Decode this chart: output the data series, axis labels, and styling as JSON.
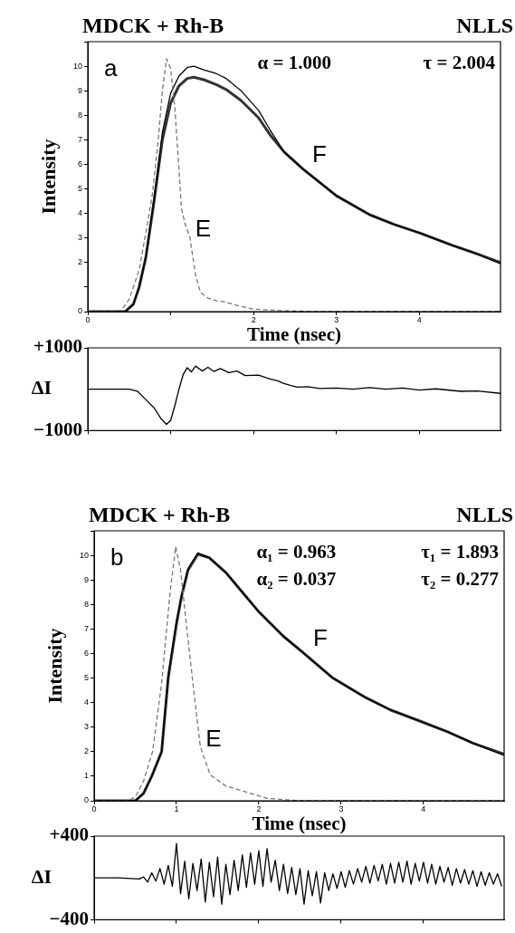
{
  "chart_data": [
    {
      "type": "line",
      "title": "MDCK + Rh-B",
      "xlabel": "Time (nsec)",
      "ylabel": "Intensity",
      "marker": "none",
      "annotations": [
        "NLLS",
        "a",
        "α = 1.000",
        "τ = 2.004"
      ],
      "xlim": [
        0,
        4.98
      ],
      "xticks": [
        0,
        {
          "value": 1,
          "label": null
        },
        2,
        3,
        4
      ],
      "ylim": [
        0,
        11
      ],
      "yticks": [
        0,
        {
          "value": 1,
          "label": null
        },
        2,
        3,
        4,
        5,
        6,
        7,
        8,
        9,
        10,
        {
          "value": 11,
          "label": null
        }
      ],
      "series": [
        {
          "name": "E",
          "color": "#777777",
          "line_style": "dashed",
          "x": [
            0,
            0.3,
            0.4,
            0.5,
            0.62,
            0.7,
            0.78,
            0.85,
            0.9,
            0.95,
            1.0,
            1.05,
            1.1,
            1.13,
            1.18,
            1.23,
            1.3,
            1.36,
            1.45,
            1.55,
            1.67,
            1.8,
            2.0,
            2.3,
            2.7,
            3.5,
            4.98
          ],
          "values": [
            0,
            0,
            0.05,
            0.5,
            1.7,
            3.2,
            4.8,
            7.0,
            9.0,
            10.3,
            9.9,
            8.3,
            5.8,
            4.2,
            3.5,
            3.06,
            1.5,
            0.78,
            0.55,
            0.45,
            0.38,
            0.25,
            0.1,
            0.05,
            0,
            0,
            0
          ]
        },
        {
          "name": "F",
          "color": "#000000",
          "x": [
            0,
            0.45,
            0.55,
            0.62,
            0.7,
            0.8,
            0.9,
            1.0,
            1.1,
            1.2,
            1.28,
            1.4,
            1.55,
            1.67,
            1.85,
            2.06,
            2.2,
            2.37,
            2.6,
            3.0,
            3.4,
            3.7,
            4.01,
            4.4,
            4.7,
            4.98
          ],
          "values": [
            0,
            0,
            0.3,
            1.0,
            2.2,
            4.6,
            7.3,
            8.9,
            9.6,
            9.95,
            10.0,
            9.85,
            9.7,
            9.5,
            9.0,
            8.2,
            7.4,
            6.5,
            5.8,
            4.72,
            3.95,
            3.55,
            3.2,
            2.7,
            2.35,
            1.95
          ]
        },
        {
          "color": "#333333",
          "x": [
            0,
            0.45,
            0.55,
            0.62,
            0.7,
            0.8,
            0.9,
            1.0,
            1.1,
            1.2,
            1.28,
            1.4,
            1.55,
            1.67,
            1.85,
            2.06,
            2.2,
            2.37,
            2.6,
            3.0,
            3.4,
            3.7,
            4.01,
            4.4,
            4.7,
            4.98
          ],
          "values": [
            0,
            0,
            0.3,
            1.0,
            2.2,
            4.5,
            7.0,
            8.5,
            9.2,
            9.5,
            9.55,
            9.45,
            9.25,
            9.05,
            8.6,
            7.9,
            7.2,
            6.5,
            5.8,
            4.72,
            3.95,
            3.55,
            3.2,
            2.7,
            2.35,
            2.0
          ]
        }
      ]
    },
    {
      "type": "line",
      "ylabel": "ΔI",
      "marker": "none",
      "tick_labels": "y",
      "xlim": [
        0,
        4.98
      ],
      "xticks": [
        {
          "value": 0,
          "label": null
        },
        {
          "value": 1,
          "label": null
        },
        {
          "value": 2,
          "label": null
        },
        {
          "value": 3,
          "label": null
        },
        {
          "value": 4,
          "label": null
        }
      ],
      "ylim": [
        -1000,
        1000
      ],
      "yticks": [
        {
          "value": 1000,
          "label": "+1000"
        },
        {
          "value": -1000,
          "label": "−1000"
        }
      ],
      "series": [
        {
          "color": "#000000",
          "x": [
            0,
            0.5,
            0.6,
            0.7,
            0.8,
            0.88,
            0.95,
            1.0,
            1.05,
            1.1,
            1.15,
            1.2,
            1.25,
            1.3,
            1.38,
            1.45,
            1.52,
            1.6,
            1.7,
            1.8,
            1.9,
            2.06,
            2.15,
            2.2,
            2.3,
            2.35,
            2.45,
            2.53,
            2.65,
            2.8,
            3.0,
            3.2,
            3.4,
            3.6,
            3.8,
            4.0,
            4.2,
            4.5,
            4.7,
            4.98
          ],
          "values": [
            0,
            0,
            -50,
            -250,
            -450,
            -700,
            -850,
            -750,
            -400,
            0,
            350,
            520,
            420,
            560,
            440,
            530,
            430,
            500,
            400,
            440,
            330,
            340,
            280,
            250,
            200,
            150,
            90,
            50,
            60,
            20,
            30,
            0,
            40,
            0,
            30,
            -20,
            10,
            -50,
            -40,
            -100
          ]
        }
      ]
    },
    {
      "type": "line",
      "title": "MDCK + Rh-B",
      "xlabel": "Time (nsec)",
      "ylabel": "Intensity",
      "marker": "none",
      "annotations": [
        "NLLS",
        "b",
        "α₁ = 0.963",
        "τ₁ = 1.893",
        "α₂ = 0.037",
        "τ₂ = 0.277"
      ],
      "xlim": [
        0,
        4.98
      ],
      "xticks": [
        0,
        1,
        2,
        3,
        4
      ],
      "ylim": [
        0,
        11
      ],
      "yticks": [
        0,
        1,
        2,
        3,
        4,
        5,
        6,
        7,
        8,
        9,
        10,
        {
          "value": 11,
          "label": null
        }
      ],
      "series": [
        {
          "name": "E",
          "color": "#777777",
          "line_style": "dashed",
          "x": [
            0,
            0.4,
            0.5,
            0.6,
            0.71,
            0.82,
            0.92,
            0.99,
            1.05,
            1.12,
            1.22,
            1.29,
            1.41,
            1.6,
            1.8,
            2.1,
            2.5,
            4.98
          ],
          "values": [
            0,
            0,
            0.15,
            0.8,
            2.0,
            4.8,
            8.4,
            10.35,
            9.4,
            7.2,
            4.2,
            2.2,
            1.06,
            0.6,
            0.4,
            0.1,
            0,
            0
          ]
        },
        {
          "name": "F",
          "color": "#000000",
          "x": [
            0,
            0.5,
            0.6,
            0.7,
            0.82,
            0.9,
            1.0,
            1.06,
            1.14,
            1.26,
            1.4,
            1.6,
            1.8,
            2.0,
            2.3,
            2.55,
            2.9,
            3.3,
            3.6,
            3.97,
            4.3,
            4.6,
            4.98
          ],
          "values": [
            0,
            0,
            0.3,
            1.0,
            2.0,
            5.1,
            7.3,
            8.3,
            9.45,
            10.1,
            9.9,
            9.3,
            8.5,
            7.7,
            6.7,
            6.0,
            5.0,
            4.2,
            3.7,
            3.23,
            2.8,
            2.35,
            1.85
          ]
        },
        {
          "color": "#333333",
          "x": [
            0,
            0.5,
            0.6,
            0.7,
            0.82,
            0.9,
            1.0,
            1.06,
            1.14,
            1.26,
            1.4,
            1.6,
            1.8,
            2.0,
            2.3,
            2.55,
            2.9,
            3.3,
            3.6,
            3.97,
            4.3,
            4.6,
            4.98
          ],
          "values": [
            0,
            0,
            0.3,
            1.0,
            2.0,
            5.0,
            7.2,
            8.3,
            9.4,
            10.05,
            9.9,
            9.3,
            8.5,
            7.7,
            6.7,
            6.0,
            5.0,
            4.2,
            3.7,
            3.23,
            2.8,
            2.35,
            1.9
          ]
        }
      ]
    },
    {
      "type": "line",
      "ylabel": "ΔI",
      "marker": "none",
      "tick_labels": "y",
      "xlim": [
        0,
        4.98
      ],
      "xticks": [
        {
          "value": 0,
          "label": null
        },
        {
          "value": 1,
          "label": null
        },
        {
          "value": 2,
          "label": null
        },
        {
          "value": 3,
          "label": null
        },
        {
          "value": 4,
          "label": null
        }
      ],
      "ylim": [
        -400,
        400
      ],
      "yticks": [
        {
          "value": 400,
          "label": "+400"
        },
        {
          "value": -400,
          "label": "−400"
        }
      ],
      "series": [
        {
          "color": "#000000",
          "x": [
            0,
            0.3,
            0.55,
            0.6,
            0.65,
            0.7,
            0.75,
            0.8,
            0.85,
            0.9,
            0.95,
            1.0,
            1.05,
            1.1,
            1.15,
            1.2,
            1.25,
            1.3,
            1.35,
            1.4,
            1.45,
            1.5,
            1.55,
            1.6,
            1.65,
            1.7,
            1.75,
            1.8,
            1.85,
            1.9,
            1.95,
            2.0,
            2.05,
            2.1,
            2.15,
            2.2,
            2.25,
            2.3,
            2.35,
            2.4,
            2.45,
            2.5,
            2.55,
            2.6,
            2.65,
            2.7,
            2.75,
            2.8,
            2.85,
            2.9,
            2.95,
            3.0,
            3.05,
            3.1,
            3.15,
            3.2,
            3.25,
            3.3,
            3.35,
            3.4,
            3.45,
            3.5,
            3.55,
            3.6,
            3.65,
            3.7,
            3.75,
            3.8,
            3.85,
            3.9,
            3.95,
            4.0,
            4.05,
            4.1,
            4.15,
            4.2,
            4.25,
            4.3,
            4.35,
            4.4,
            4.45,
            4.5,
            4.55,
            4.6,
            4.65,
            4.7,
            4.75,
            4.8,
            4.85,
            4.9,
            4.95
          ],
          "values": [
            0,
            0,
            -10,
            10,
            -40,
            50,
            -30,
            90,
            -60,
            120,
            -80,
            330,
            -150,
            160,
            -200,
            140,
            -120,
            180,
            -230,
            150,
            -180,
            200,
            -250,
            130,
            -160,
            170,
            -120,
            220,
            -90,
            240,
            -60,
            260,
            -80,
            280,
            -40,
            170,
            -120,
            130,
            -150,
            100,
            -160,
            90,
            -250,
            70,
            -170,
            60,
            -240,
            50,
            -120,
            40,
            -100,
            60,
            -90,
            70,
            -60,
            90,
            -40,
            110,
            -50,
            120,
            -30,
            130,
            -60,
            140,
            -50,
            150,
            -40,
            160,
            -60,
            140,
            -30,
            150,
            -50,
            130,
            -60,
            110,
            -40,
            100,
            -70,
            90,
            -50,
            80,
            -60,
            70,
            -80,
            60,
            -70,
            50,
            -60,
            40,
            -80
          ]
        }
      ]
    }
  ]
}
